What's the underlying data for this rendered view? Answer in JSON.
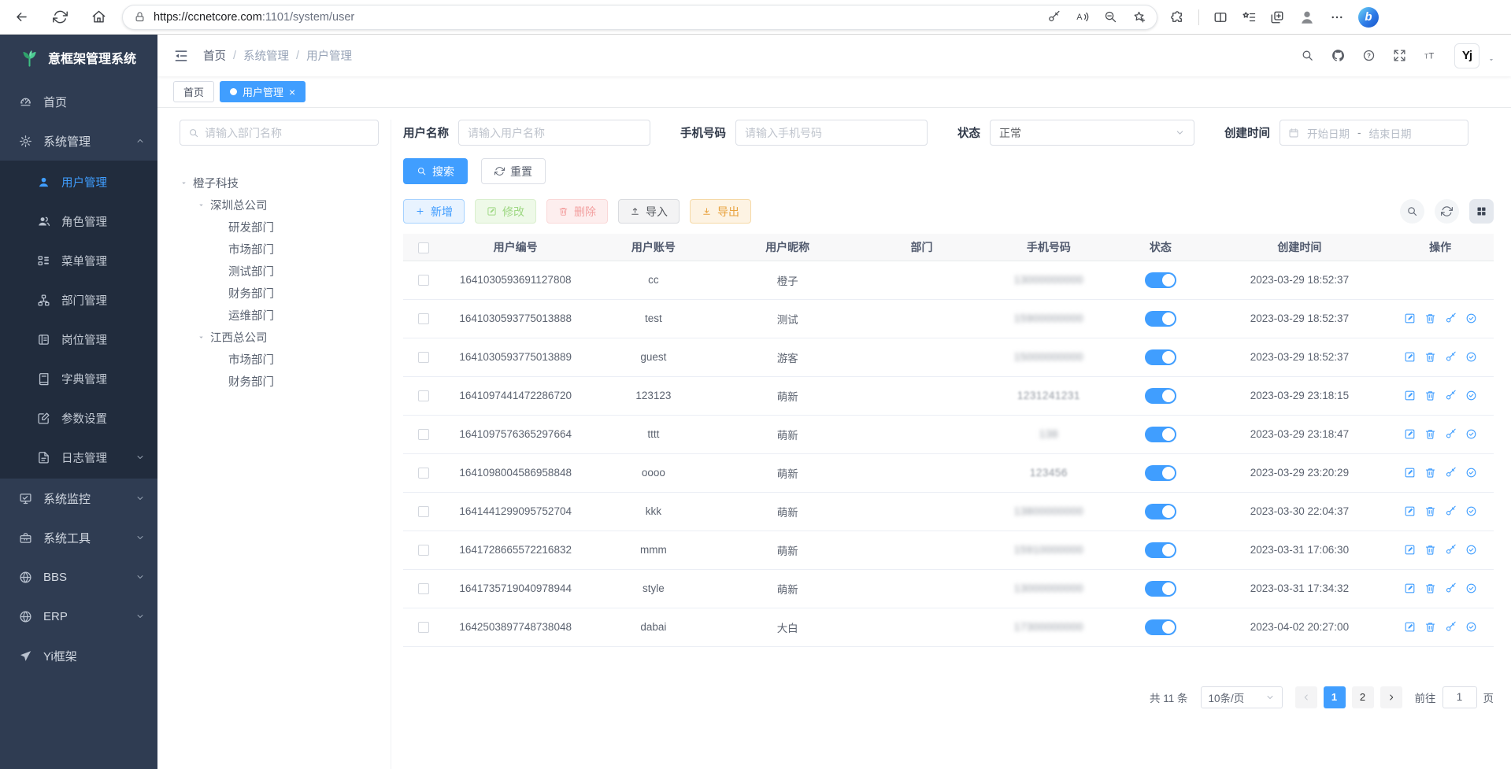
{
  "colors": {
    "accent": "#409eff",
    "sidebar_bg": "#2f3c52",
    "submenu_bg": "#212c3d",
    "tab_active_bg": "#409eff",
    "toggle_on": "#409eff"
  },
  "browser": {
    "url_scheme_host": "https://ccnetcore.com",
    "url_path": ":1101/system/user",
    "url": "https://ccnetcore.com:1101/system/user",
    "nav_buttons": [
      {
        "name": "back-button",
        "icon": "arrow-left"
      },
      {
        "name": "refresh-button",
        "icon": "refresh"
      },
      {
        "name": "home-button",
        "icon": "home"
      }
    ],
    "pill_buttons": [
      {
        "name": "password-button",
        "icon": "key"
      },
      {
        "name": "read-aloud-button",
        "icon": "read-aloud"
      },
      {
        "name": "zoom-out-button",
        "icon": "zoom-out"
      },
      {
        "name": "add-favorite-button",
        "icon": "star-plus"
      }
    ],
    "window_buttons": [
      {
        "name": "extensions-button",
        "icon": "puzzle"
      },
      {
        "name": "toolbar-divider",
        "type": "sep"
      },
      {
        "name": "split-screen-button",
        "icon": "split"
      },
      {
        "name": "favorites-button",
        "icon": "fav-bar"
      },
      {
        "name": "collections-button",
        "icon": "collections"
      },
      {
        "name": "profile-button",
        "icon": "profile"
      },
      {
        "name": "more-button",
        "icon": "more-h"
      },
      {
        "name": "copilot-button",
        "icon": "copilot",
        "label": "b"
      }
    ]
  },
  "header": {
    "logo": "意框架管理系统",
    "breadcrumb": [
      "首页",
      "系统管理",
      "用户管理"
    ],
    "avatar_text": "Yj",
    "right_buttons": [
      {
        "name": "search-button",
        "icon": "search"
      },
      {
        "name": "github-button",
        "icon": "github"
      },
      {
        "name": "help-button",
        "icon": "help"
      },
      {
        "name": "fullscreen-button",
        "icon": "fullscreen"
      },
      {
        "name": "font-size-button",
        "icon": "font-size"
      }
    ]
  },
  "sidebar": {
    "items": [
      {
        "key": "home",
        "label": "首页",
        "icon": "dashboard"
      },
      {
        "key": "system-management",
        "label": "系统管理",
        "icon": "gear",
        "expanded": true,
        "children": [
          {
            "key": "user-management",
            "label": "用户管理",
            "icon": "user",
            "active": true
          },
          {
            "key": "role-management",
            "label": "角色管理",
            "icon": "role"
          },
          {
            "key": "menu-management",
            "label": "菜单管理",
            "icon": "menu-tree"
          },
          {
            "key": "dept-management",
            "label": "部门管理",
            "icon": "dept"
          },
          {
            "key": "post-management",
            "label": "岗位管理",
            "icon": "post"
          },
          {
            "key": "dict-management",
            "label": "字典管理",
            "icon": "dict"
          },
          {
            "key": "param-settings",
            "label": "参数设置",
            "icon": "param"
          },
          {
            "key": "log-management",
            "label": "日志管理",
            "icon": "log",
            "collapsible": true
          }
        ]
      },
      {
        "key": "system-monitor",
        "label": "系统监控",
        "icon": "monitor",
        "collapsible": true
      },
      {
        "key": "system-tools",
        "label": "系统工具",
        "icon": "toolbox",
        "collapsible": true
      },
      {
        "key": "bbs",
        "label": "BBS",
        "icon": "globe",
        "collapsible": true
      },
      {
        "key": "erp",
        "label": "ERP",
        "icon": "globe",
        "collapsible": true
      },
      {
        "key": "yi-framework",
        "label": "Yi框架",
        "icon": "send"
      }
    ]
  },
  "tabs": [
    {
      "label": "首页",
      "active": false,
      "closable": false
    },
    {
      "label": "用户管理",
      "active": true,
      "closable": true
    }
  ],
  "filters": {
    "dept_search_placeholder": "请输入部门名称",
    "username_label": "用户名称",
    "username_placeholder": "请输入用户名称",
    "phone_label": "手机号码",
    "phone_placeholder": "请输入手机号码",
    "status_label": "状态",
    "status_value": "正常",
    "created_label": "创建时间",
    "date_start_placeholder": "开始日期",
    "date_separator": "-",
    "date_end_placeholder": "结束日期",
    "search_button": "搜索",
    "reset_button": "重置"
  },
  "tree": {
    "nodes": [
      {
        "label": "橙子科技",
        "level": 0,
        "caret": true
      },
      {
        "label": "深圳总公司",
        "level": 1,
        "caret": true
      },
      {
        "label": "研发部门",
        "level": 2,
        "caret": false
      },
      {
        "label": "市场部门",
        "level": 2,
        "caret": false
      },
      {
        "label": "测试部门",
        "level": 2,
        "caret": false
      },
      {
        "label": "财务部门",
        "level": 2,
        "caret": false
      },
      {
        "label": "运维部门",
        "level": 2,
        "caret": false
      },
      {
        "label": "江西总公司",
        "level": 1,
        "caret": true
      },
      {
        "label": "市场部门",
        "level": 2,
        "caret": false
      },
      {
        "label": "财务部门",
        "level": 2,
        "caret": false
      }
    ]
  },
  "toolbar": {
    "buttons": [
      {
        "key": "add",
        "label": "新增",
        "icon": "plus",
        "style": "blue"
      },
      {
        "key": "edit",
        "label": "修改",
        "icon": "edit-square",
        "style": "green",
        "disabled": true
      },
      {
        "key": "delete",
        "label": "删除",
        "icon": "trash",
        "style": "red",
        "disabled": true
      },
      {
        "key": "import",
        "label": "导入",
        "icon": "upload",
        "style": "gray"
      },
      {
        "key": "export",
        "label": "导出",
        "icon": "download",
        "style": "orange"
      }
    ],
    "tools": [
      {
        "name": "toggle-search-button",
        "icon": "search"
      },
      {
        "name": "refresh-table-button",
        "icon": "refresh"
      },
      {
        "name": "column-settings-button",
        "icon": "grid",
        "square": true
      }
    ]
  },
  "table": {
    "columns": [
      "用户编号",
      "用户账号",
      "用户昵称",
      "部门",
      "手机号码",
      "状态",
      "创建时间",
      "操作"
    ],
    "op_buttons": [
      {
        "name": "edit-row-button",
        "icon": "edit-square"
      },
      {
        "name": "delete-row-button",
        "icon": "trash"
      },
      {
        "name": "reset-password-button",
        "icon": "key"
      },
      {
        "name": "grant-role-button",
        "icon": "check-circle"
      }
    ],
    "rows": [
      {
        "id": "1641030593691127808",
        "account": "cc",
        "nickname": "橙子",
        "dept": "",
        "phone": "13000000000",
        "phone_masked": true,
        "status_on": true,
        "created": "2023-03-29 18:52:37",
        "ops": false
      },
      {
        "id": "1641030593775013888",
        "account": "test",
        "nickname": "测试",
        "dept": "",
        "phone": "15900000000",
        "phone_masked": true,
        "status_on": true,
        "created": "2023-03-29 18:52:37",
        "ops": true
      },
      {
        "id": "1641030593775013889",
        "account": "guest",
        "nickname": "游客",
        "dept": "",
        "phone": "15000000000",
        "phone_masked": true,
        "status_on": true,
        "created": "2023-03-29 18:52:37",
        "ops": true
      },
      {
        "id": "1641097441472286720",
        "account": "123123",
        "nickname": "萌新",
        "dept": "",
        "phone": "1231241231",
        "phone_masked": true,
        "mask_light": true,
        "status_on": true,
        "created": "2023-03-29 23:18:15",
        "ops": true
      },
      {
        "id": "1641097576365297664",
        "account": "tttt",
        "nickname": "萌新",
        "dept": "",
        "phone": "138",
        "phone_masked": true,
        "status_on": true,
        "created": "2023-03-29 23:18:47",
        "ops": true
      },
      {
        "id": "1641098004586958848",
        "account": "oooo",
        "nickname": "萌新",
        "dept": "",
        "phone": "123456",
        "phone_masked": true,
        "mask_light": true,
        "status_on": true,
        "created": "2023-03-29 23:20:29",
        "ops": true
      },
      {
        "id": "1641441299095752704",
        "account": "kkk",
        "nickname": "萌新",
        "dept": "",
        "phone": "13800000000",
        "phone_masked": true,
        "status_on": true,
        "created": "2023-03-30 22:04:37",
        "ops": true
      },
      {
        "id": "1641728665572216832",
        "account": "mmm",
        "nickname": "萌新",
        "dept": "",
        "phone": "15910000000",
        "phone_masked": true,
        "status_on": true,
        "created": "2023-03-31 17:06:30",
        "ops": true
      },
      {
        "id": "1641735719040978944",
        "account": "style",
        "nickname": "萌新",
        "dept": "",
        "phone": "13000000000",
        "phone_masked": true,
        "status_on": true,
        "created": "2023-03-31 17:34:32",
        "ops": true
      },
      {
        "id": "1642503897748738048",
        "account": "dabai",
        "nickname": "大白",
        "dept": "",
        "phone": "17300000000",
        "phone_masked": true,
        "status_on": true,
        "created": "2023-04-02 20:27:00",
        "ops": true
      }
    ]
  },
  "pagination": {
    "total_text": "共 11 条",
    "page_size": "10条/页",
    "pages": [
      "1",
      "2"
    ],
    "active_page": "1",
    "goto_label": "前往",
    "goto_value": "1",
    "goto_suffix": "页"
  }
}
